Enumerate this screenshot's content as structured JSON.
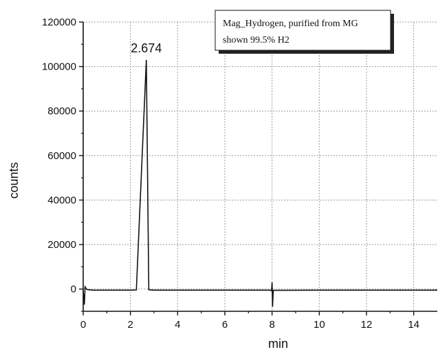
{
  "chart_data": {
    "type": "line",
    "title": "",
    "xlabel": "min",
    "ylabel": "counts",
    "xlim": [
      0,
      15
    ],
    "ylim": [
      -10000,
      120000
    ],
    "x_ticks": [
      0,
      2,
      4,
      6,
      8,
      10,
      12,
      14
    ],
    "x_tick_labels": [
      "0",
      "2",
      "4",
      "6",
      "8",
      "10",
      "12",
      "14"
    ],
    "y_ticks": [
      0,
      20000,
      40000,
      60000,
      80000,
      100000,
      120000
    ],
    "y_tick_labels": [
      "0",
      "20000",
      "40000",
      "60000",
      "80000",
      "100000",
      "120000"
    ],
    "grid": true,
    "legend": {
      "placement": "top-right",
      "lines": [
        "Mag_Hydrogen, purified  from MG",
        "shown 99.5% H2"
      ]
    },
    "annotations": [
      {
        "text": "2.674",
        "x": 2.674,
        "y": 103000
      }
    ],
    "series": [
      {
        "color": "#111111",
        "points": [
          [
            0.0,
            -800
          ],
          [
            0.05,
            -7000
          ],
          [
            0.08,
            1000
          ],
          [
            0.15,
            -200
          ],
          [
            0.4,
            -500
          ],
          [
            1.0,
            -500
          ],
          [
            2.0,
            -500
          ],
          [
            2.25,
            -400
          ],
          [
            2.674,
            103000
          ],
          [
            2.78,
            -300
          ],
          [
            3.0,
            -500
          ],
          [
            5.0,
            -500
          ],
          [
            7.9,
            -500
          ],
          [
            7.98,
            -700
          ],
          [
            8.0,
            3000
          ],
          [
            8.02,
            -8000
          ],
          [
            8.05,
            -600
          ],
          [
            10.0,
            -500
          ],
          [
            12.0,
            -500
          ],
          [
            15.0,
            -500
          ]
        ]
      }
    ]
  }
}
